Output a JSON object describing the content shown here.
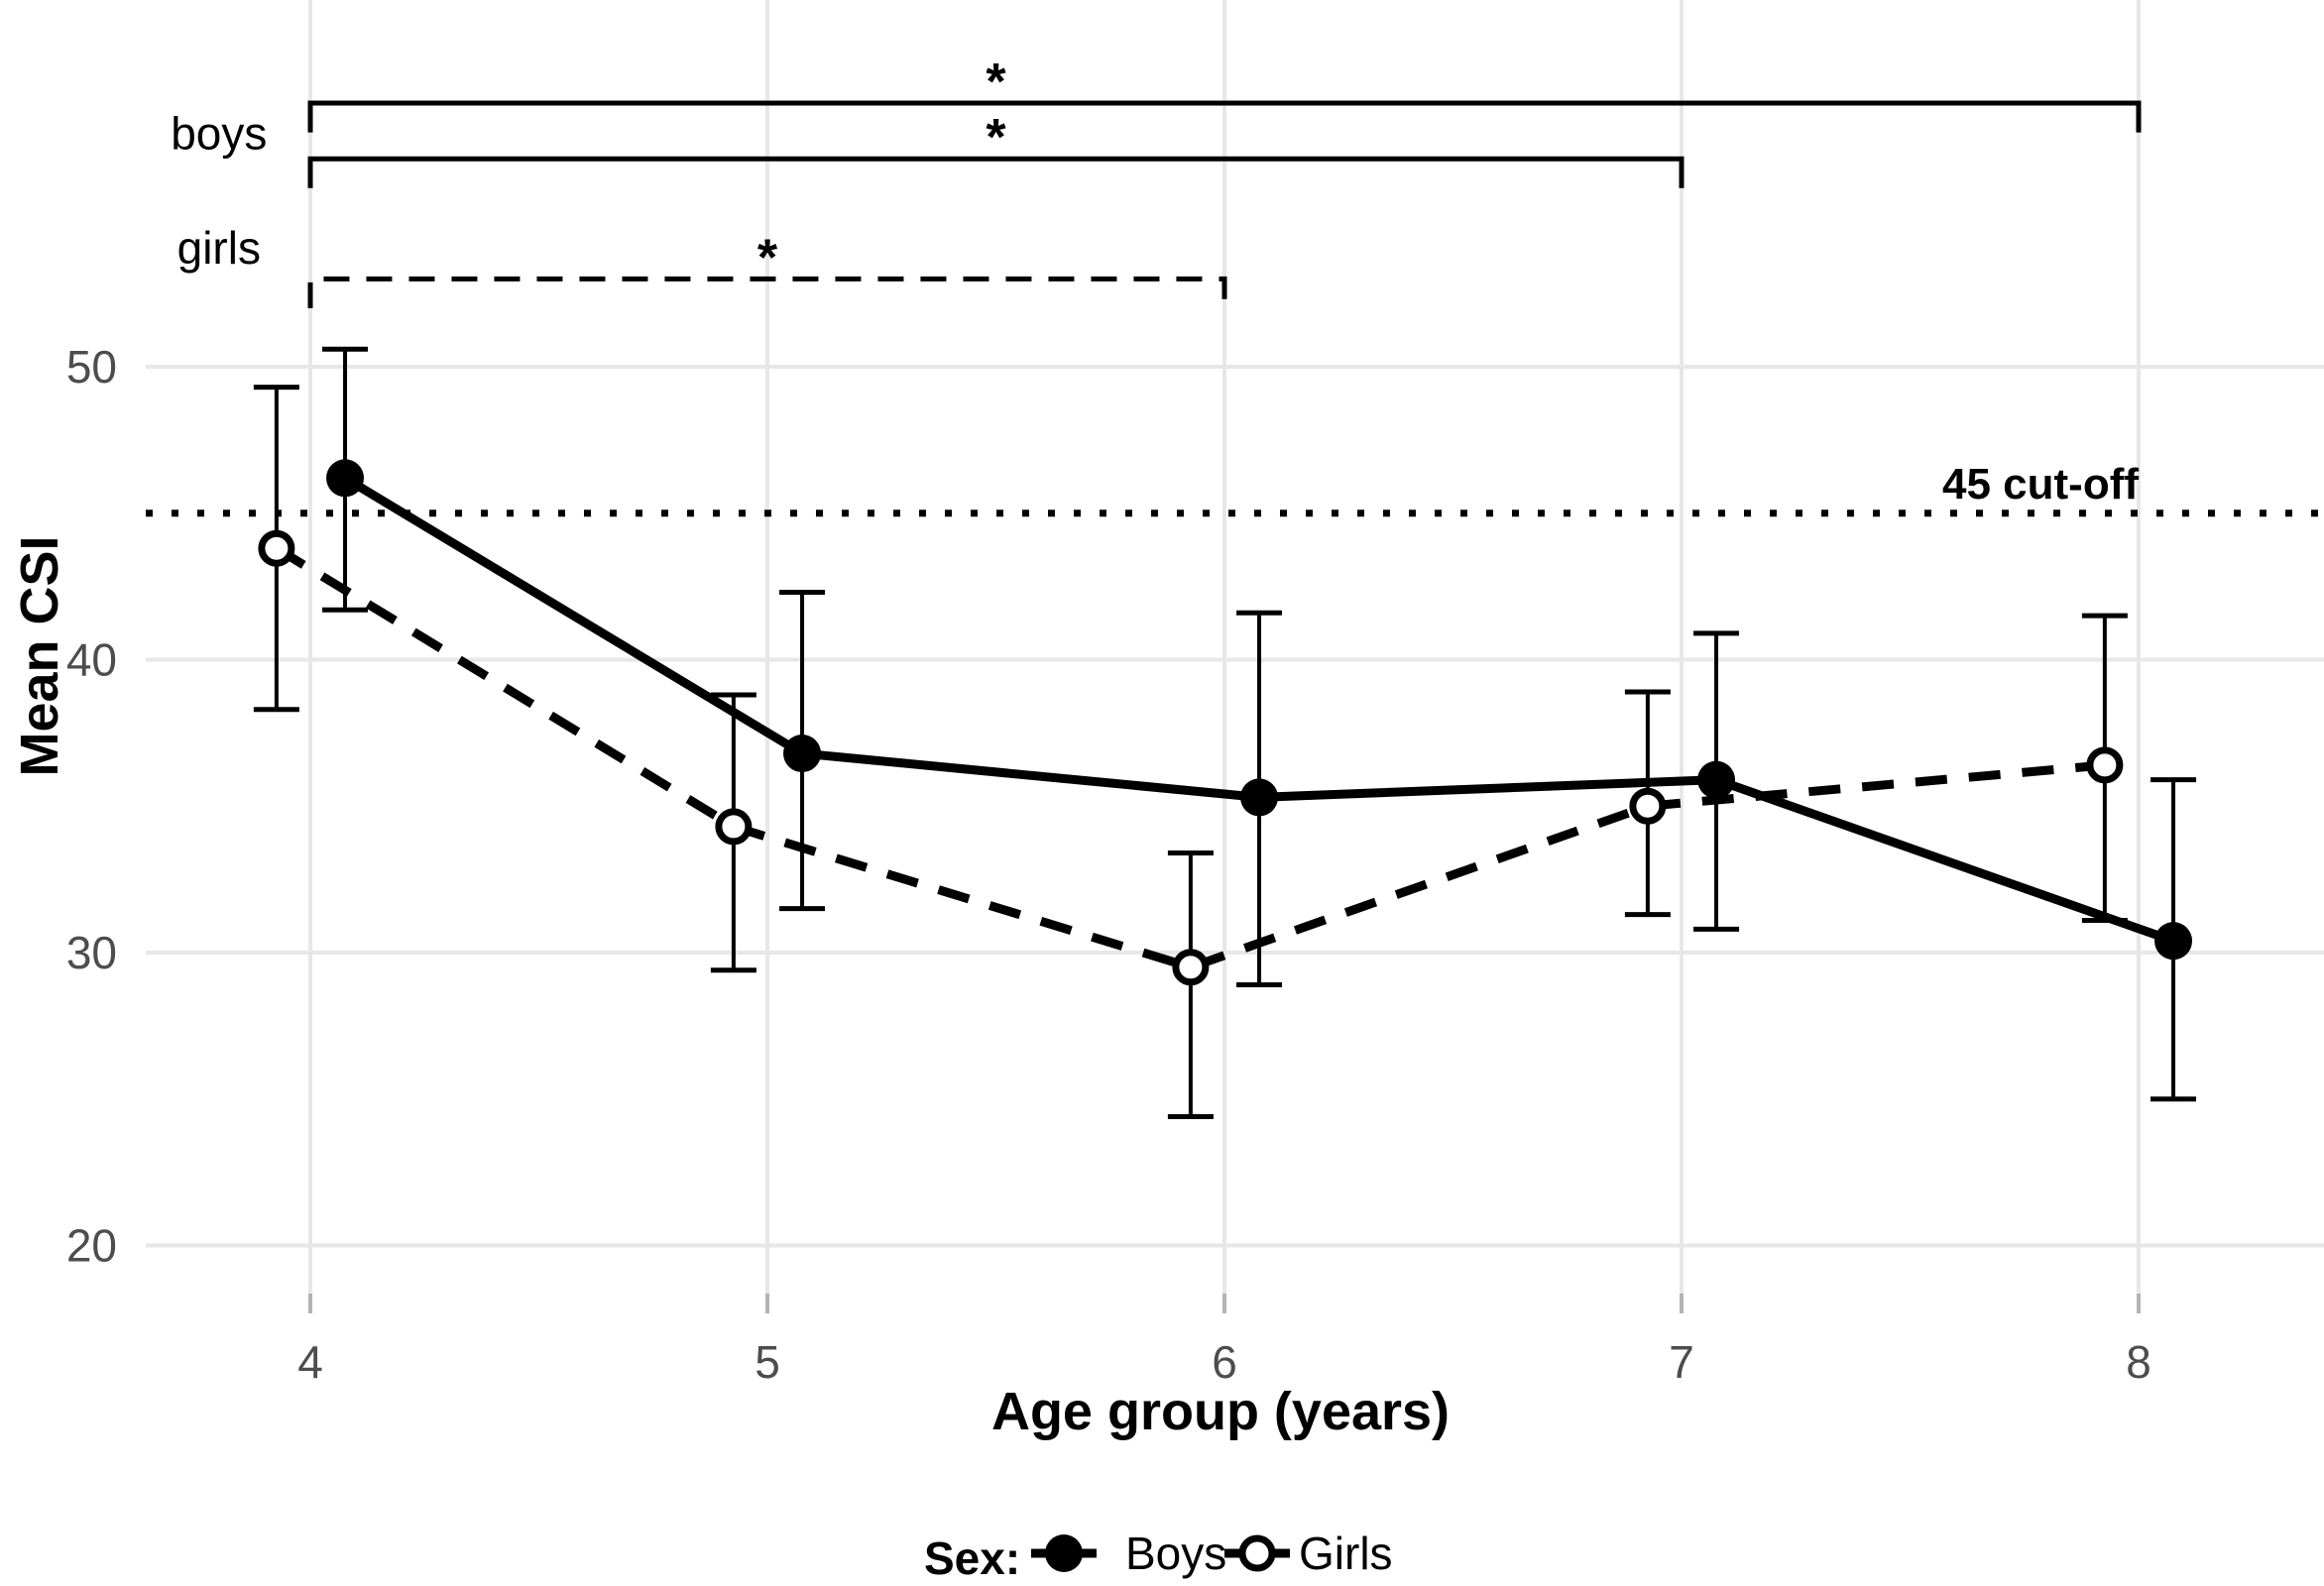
{
  "figure": {
    "background": "#ffffff",
    "grid_color": "#e7e7e7",
    "tick_color": "#b3b3b3",
    "axis_text_color": "#4d4d4d",
    "data_color": "#000000"
  },
  "chart_data": {
    "type": "line",
    "title": "",
    "xlabel": "Age group (years)",
    "ylabel": "Mean CSI",
    "x": [
      4,
      5,
      6,
      7,
      8
    ],
    "xticks": [
      "4",
      "5",
      "6",
      "7",
      "8"
    ],
    "yticks": [
      50,
      40,
      30,
      20
    ],
    "ylim": [
      18.4,
      62.5
    ],
    "xlim": [
      3.45,
      8.4
    ],
    "grid": true,
    "legend_position": "bottom",
    "series": [
      {
        "name": "Boys",
        "marker": "filled-circle",
        "line_style": "solid",
        "dodge": 0.076,
        "values": [
          46.2,
          36.8,
          35.3,
          35.9,
          30.4
        ],
        "ci_low": [
          41.7,
          31.5,
          28.9,
          30.8,
          25.0
        ],
        "ci_high": [
          50.6,
          42.3,
          41.6,
          40.9,
          35.9
        ]
      },
      {
        "name": "Girls",
        "marker": "open-circle",
        "line_style": "dashed",
        "dodge": -0.074,
        "values": [
          43.8,
          34.3,
          29.5,
          35.0,
          36.4
        ],
        "ci_low": [
          38.3,
          29.4,
          24.4,
          31.3,
          31.1
        ],
        "ci_high": [
          49.3,
          38.8,
          33.4,
          38.9,
          41.5
        ]
      }
    ],
    "cutoff_line": {
      "value": 45,
      "label": "45 cut-off",
      "style": "dotted"
    },
    "significance_brackets": [
      {
        "group": "boys",
        "from": 4,
        "to": 8,
        "y": 59.0,
        "tick": 1.0,
        "style": "solid",
        "label": "*",
        "label_x": 5.5
      },
      {
        "group": "boys",
        "from": 4,
        "to": 7,
        "y": 57.1,
        "tick": 1.0,
        "style": "solid",
        "label": "*",
        "label_x": 5.5
      },
      {
        "group": "girls",
        "from": 4,
        "to": 6,
        "y": 53.0,
        "tick": 1.0,
        "style": "dashed",
        "label": "*",
        "label_x": 5.0
      }
    ],
    "bracket_side_labels": [
      {
        "text": "boys",
        "x": 3.8,
        "y": 57.9
      },
      {
        "text": "girls",
        "x": 3.8,
        "y": 54.0
      }
    ],
    "legend": {
      "title": "Sex:",
      "entries": [
        {
          "label": "Boys",
          "marker": "filled-circle"
        },
        {
          "label": "Girls",
          "marker": "open-circle"
        }
      ]
    }
  }
}
